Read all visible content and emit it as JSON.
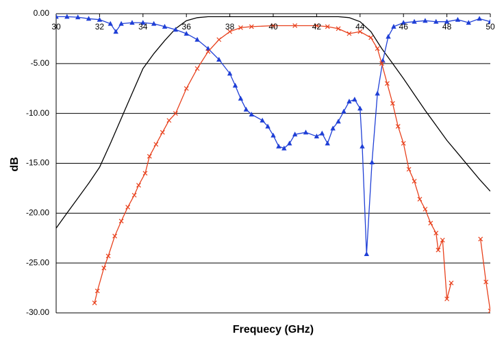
{
  "chart_data": {
    "type": "line",
    "x_label": "Frequecy (GHz)",
    "y_label": "dB",
    "xlim": [
      30,
      50
    ],
    "xticks": [
      30,
      32,
      34,
      36,
      38,
      40,
      42,
      44,
      46,
      48,
      50
    ],
    "ylim": [
      -30,
      0
    ],
    "yticks": [
      {
        "value": 0,
        "label": "0.00"
      },
      {
        "value": -5,
        "label": "-5.00"
      },
      {
        "value": -10,
        "label": "-10.00"
      },
      {
        "value": -15,
        "label": "-15.00"
      },
      {
        "value": -20,
        "label": "-20.00"
      },
      {
        "value": -25,
        "label": "-25.00"
      },
      {
        "value": -30,
        "label": "-30.00"
      }
    ],
    "grid": true,
    "series": [
      {
        "color": "#000000",
        "marker": "none",
        "x": [
          30,
          30.5,
          31,
          31.5,
          32,
          32.5,
          33,
          33.5,
          34,
          34.5,
          35,
          35.5,
          36,
          36.5,
          37,
          38,
          39,
          40,
          41,
          42,
          43,
          43.5,
          44,
          44.5,
          45,
          45.5,
          46,
          46.5,
          47,
          47.5,
          48,
          48.5,
          49,
          49.5,
          50
        ],
        "values": [
          -21.5,
          -20.0,
          -18.5,
          -17.0,
          -15.4,
          -13.0,
          -10.5,
          -8.0,
          -5.5,
          -4.0,
          -2.7,
          -1.5,
          -0.7,
          -0.4,
          -0.3,
          -0.3,
          -0.3,
          -0.3,
          -0.3,
          -0.3,
          -0.3,
          -0.4,
          -0.8,
          -1.8,
          -3.5,
          -5.0,
          -6.5,
          -8.1,
          -9.7,
          -11.2,
          -12.7,
          -14.0,
          -15.3,
          -16.6,
          -17.8
        ]
      },
      {
        "color": "#1f3fd6",
        "marker": "triangle",
        "x": [
          30,
          30.5,
          31,
          31.5,
          32,
          32.5,
          32.75,
          33,
          33.5,
          34,
          34.5,
          35,
          35.5,
          36,
          36.5,
          37,
          37.5,
          38,
          38.25,
          38.5,
          38.75,
          39,
          39.5,
          39.75,
          40,
          40.25,
          40.5,
          40.75,
          41,
          41.5,
          42,
          42.25,
          42.5,
          42.75,
          43,
          43.25,
          43.5,
          43.75,
          44,
          44.1,
          44.3,
          44.55,
          44.8,
          45.05,
          45.3,
          45.55,
          46,
          46.5,
          47,
          47.5,
          48,
          48.5,
          49,
          49.5,
          50
        ],
        "values": [
          -0.3,
          -0.3,
          -0.35,
          -0.5,
          -0.6,
          -1.0,
          -1.8,
          -1.0,
          -0.9,
          -0.9,
          -1.0,
          -1.3,
          -1.6,
          -2.0,
          -2.6,
          -3.5,
          -4.6,
          -6.0,
          -7.2,
          -8.5,
          -9.6,
          -10.1,
          -10.7,
          -11.3,
          -12.2,
          -13.3,
          -13.5,
          -13.0,
          -12.1,
          -11.9,
          -12.3,
          -12.0,
          -13.0,
          -11.5,
          -10.8,
          -9.8,
          -8.8,
          -8.6,
          -9.5,
          -13.3,
          -24.1,
          -14.9,
          -8.0,
          -4.7,
          -2.3,
          -1.3,
          -0.9,
          -0.8,
          -0.7,
          -0.8,
          -0.8,
          -0.6,
          -0.9,
          -0.5,
          -0.8
        ]
      },
      {
        "color": "#e8401c",
        "marker": "cross",
        "x": [
          31.77,
          31.9,
          32.2,
          32.4,
          32.7,
          33,
          33.3,
          33.6,
          33.8,
          34.1,
          34.3,
          34.6,
          34.9,
          35.2,
          35.5,
          36,
          36.5,
          37,
          37.5,
          38,
          38.5,
          39,
          40,
          41,
          42,
          42.5,
          43,
          43.5,
          44,
          44.5,
          44.8,
          45,
          45.25,
          45.5,
          45.75,
          46,
          46.25,
          46.5,
          46.75,
          47,
          47.25,
          47.5,
          47.6,
          47.8,
          48,
          48.2,
          48.3,
          49.55,
          49.8,
          50
        ],
        "values": [
          -29,
          -27.8,
          -25.5,
          -24.3,
          -22.3,
          -20.8,
          -19.4,
          -18.2,
          -17.2,
          -16.0,
          -14.3,
          -13.1,
          -11.9,
          -10.7,
          -10.0,
          -7.5,
          -5.5,
          -3.8,
          -2.6,
          -1.8,
          -1.4,
          -1.3,
          -1.2,
          -1.2,
          -1.2,
          -1.3,
          -1.5,
          -2.0,
          -1.8,
          -2.4,
          -3.5,
          -5.0,
          -7.0,
          -9.0,
          -11.3,
          -13.0,
          -15.6,
          -16.8,
          -18.6,
          -19.6,
          -21.0,
          -22.0,
          -23.7,
          -22.7,
          -28.6,
          -27.0,
          null,
          -22.6,
          -26.9,
          -29.8
        ]
      }
    ]
  }
}
